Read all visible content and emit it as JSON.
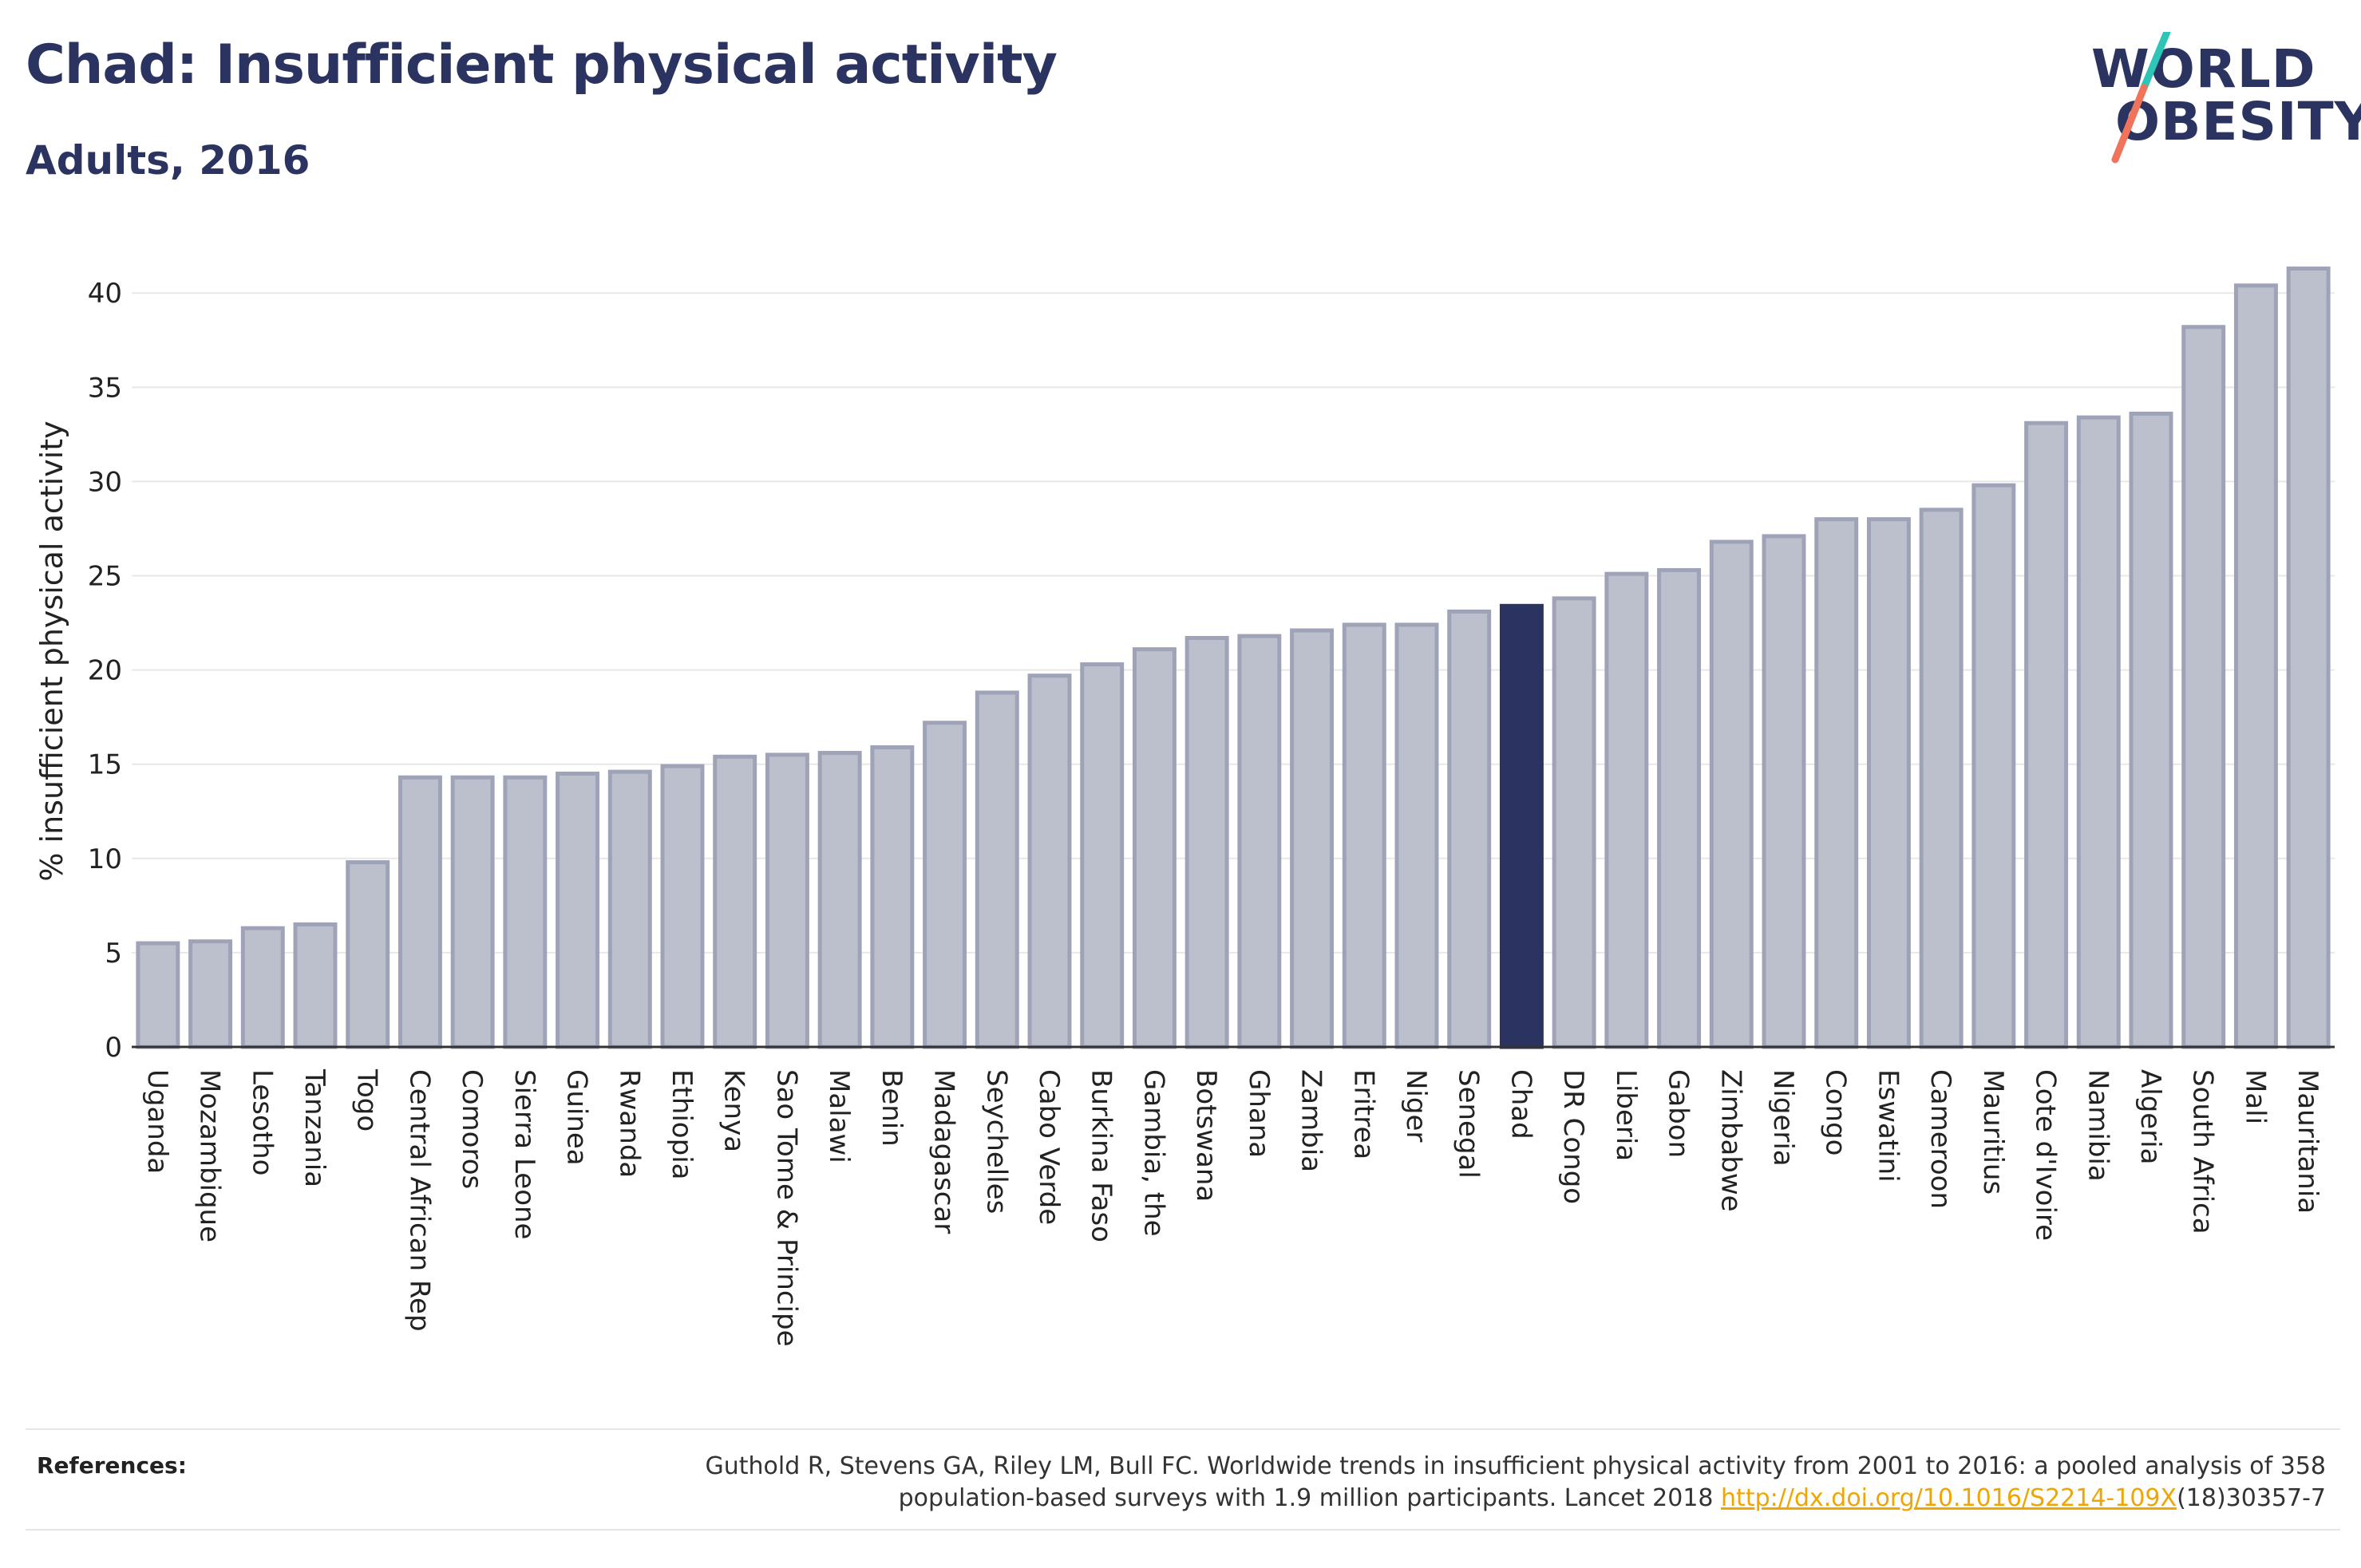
{
  "header": {
    "title": "Chad: Insufficient physical activity",
    "subtitle": "Adults, 2016"
  },
  "logo": {
    "line1": "WORLD",
    "line2": "OBESITY",
    "slash_color_top": "#2ec4b6",
    "slash_color_bottom": "#f0735a"
  },
  "references": {
    "label": "References:",
    "text_line1": "Guthold R, Stevens GA, Riley LM, Bull FC. Worldwide trends in insufficient physical activity from 2001 to 2016: a pooled analysis of 358",
    "text_line2_pre": "population-based surveys with 1.9 million participants. Lancet 2018 ",
    "link": "http://dx.doi.org/10.1016/S2214-109X",
    "text_line2_post": "(18)30357-7"
  },
  "chart_data": {
    "type": "bar",
    "title": "Chad: Insufficient physical activity",
    "subtitle": "Adults, 2016",
    "xlabel": "",
    "ylabel": "% insufficient physical activity",
    "ylim": [
      0,
      42
    ],
    "yticks": [
      0,
      5,
      10,
      15,
      20,
      25,
      30,
      35,
      40
    ],
    "grid": true,
    "highlight": "Chad",
    "colors": {
      "bar": "#bcc0cd",
      "bar_border": "#9ea3b8",
      "highlight": "#2b3460",
      "grid": "#e8e8e8"
    },
    "categories": [
      "Uganda",
      "Mozambique",
      "Lesotho",
      "Tanzania",
      "Togo",
      "Central African Rep",
      "Comoros",
      "Sierra Leone",
      "Guinea",
      "Rwanda",
      "Ethiopia",
      "Kenya",
      "Sao Tome & Principe",
      "Malawi",
      "Benin",
      "Madagascar",
      "Seychelles",
      "Cabo Verde",
      "Burkina Faso",
      "Gambia, the",
      "Botswana",
      "Ghana",
      "Zambia",
      "Eritrea",
      "Niger",
      "Senegal",
      "Chad",
      "DR Congo",
      "Liberia",
      "Gabon",
      "Zimbabwe",
      "Nigeria",
      "Congo",
      "Eswatini",
      "Cameroon",
      "Mauritius",
      "Cote d'Ivoire",
      "Namibia",
      "Algeria",
      "South Africa",
      "Mali",
      "Mauritania"
    ],
    "values": [
      5.5,
      5.6,
      6.3,
      6.5,
      9.8,
      14.3,
      14.3,
      14.3,
      14.5,
      14.6,
      14.9,
      15.4,
      15.5,
      15.6,
      15.9,
      17.2,
      18.8,
      19.7,
      20.3,
      21.1,
      21.7,
      21.8,
      22.1,
      22.4,
      22.4,
      23.1,
      23.4,
      23.8,
      25.1,
      25.3,
      26.8,
      27.1,
      28.0,
      28.0,
      28.5,
      29.8,
      33.1,
      33.4,
      33.6,
      38.2,
      40.4,
      41.3
    ]
  }
}
